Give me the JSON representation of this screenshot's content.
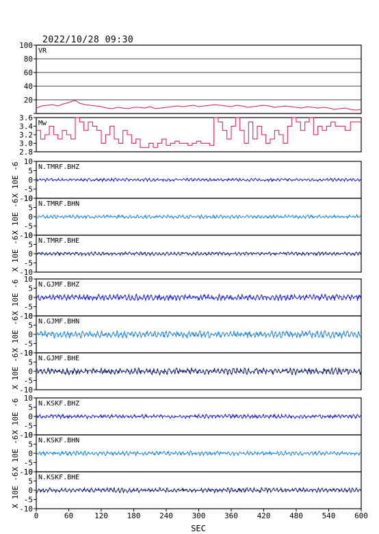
{
  "header": {
    "title": "2022/10/28 09:30"
  },
  "chart_data": {
    "type": "line",
    "xlabel": "SEC",
    "xlim": [
      0,
      600
    ],
    "xticks": [
      0,
      60,
      120,
      180,
      240,
      300,
      360,
      420,
      480,
      540,
      600
    ],
    "panels": [
      {
        "label": "VR",
        "ylim": [
          0,
          100
        ],
        "yticks": [
          0,
          20,
          40,
          60,
          80,
          100
        ],
        "ytick_labels": [
          "",
          "20",
          "40",
          "60",
          "80",
          "100"
        ],
        "grid": true,
        "color": "#d4154a",
        "series": {
          "x": [
            0,
            10,
            20,
            30,
            40,
            50,
            60,
            66,
            72,
            80,
            90,
            100,
            110,
            120,
            130,
            140,
            150,
            160,
            170,
            180,
            190,
            200,
            210,
            220,
            230,
            240,
            250,
            260,
            270,
            280,
            290,
            300,
            310,
            320,
            330,
            340,
            350,
            360,
            370,
            380,
            390,
            400,
            410,
            420,
            430,
            440,
            450,
            460,
            470,
            480,
            490,
            500,
            510,
            520,
            530,
            540,
            550,
            560,
            570,
            580,
            590,
            600
          ],
          "y": [
            8,
            11,
            12,
            13,
            11,
            14,
            16,
            18,
            19,
            15,
            13,
            12,
            11,
            10,
            8,
            7,
            9,
            8,
            7,
            9,
            9,
            8,
            10,
            7,
            8,
            9,
            10,
            11,
            10,
            11,
            12,
            10,
            11,
            12,
            13,
            12,
            11,
            10,
            12,
            11,
            9,
            10,
            11,
            12,
            11,
            9,
            10,
            11,
            10,
            9,
            8,
            10,
            9,
            8,
            9,
            8,
            6,
            7,
            8,
            6,
            5,
            6
          ]
        }
      },
      {
        "label": "Mw",
        "ylim": [
          2.8,
          3.6
        ],
        "yticks": [
          2.8,
          3.0,
          3.2,
          3.4,
          3.6
        ],
        "ytick_labels": [
          "2.8",
          "3.0",
          "3.2",
          "3.4",
          "3.6"
        ],
        "grid": false,
        "color": "#d4154a",
        "series": {
          "x": [
            0,
            8,
            16,
            24,
            32,
            40,
            48,
            56,
            64,
            72,
            80,
            88,
            96,
            104,
            112,
            120,
            128,
            136,
            144,
            152,
            160,
            168,
            176,
            184,
            192,
            200,
            208,
            216,
            224,
            232,
            240,
            248,
            256,
            264,
            272,
            280,
            288,
            296,
            304,
            312,
            320,
            328,
            336,
            344,
            352,
            360,
            368,
            376,
            384,
            392,
            400,
            408,
            416,
            424,
            432,
            440,
            448,
            456,
            464,
            472,
            480,
            488,
            496,
            504,
            512,
            520,
            528,
            536,
            544,
            552,
            560,
            570,
            580,
            590,
            600
          ],
          "y": [
            3.3,
            3.1,
            3.2,
            3.4,
            3.2,
            3.1,
            3.3,
            3.2,
            3.1,
            3.6,
            3.5,
            3.3,
            3.5,
            3.4,
            3.3,
            3.0,
            3.2,
            3.4,
            3.1,
            3.0,
            3.3,
            3.2,
            3.0,
            3.1,
            2.9,
            2.9,
            3.0,
            2.9,
            3.0,
            3.1,
            2.95,
            3.0,
            3.05,
            3.0,
            3.0,
            2.95,
            3.0,
            3.05,
            3.0,
            3.0,
            2.95,
            3.6,
            3.5,
            3.3,
            3.1,
            3.4,
            3.6,
            3.3,
            3.0,
            3.5,
            3.1,
            3.4,
            3.2,
            3.0,
            3.1,
            3.3,
            3.2,
            3.0,
            3.4,
            3.6,
            3.5,
            3.3,
            3.5,
            3.6,
            3.2,
            3.4,
            3.3,
            3.4,
            3.5,
            3.4,
            3.4,
            3.3,
            3.5,
            3.5,
            3.5
          ]
        }
      },
      {
        "label": "N.TMRF.BHZ",
        "ylim": [
          -10,
          10
        ],
        "yticks": [
          -10,
          -5,
          0,
          5,
          10
        ],
        "ytick_labels": [
          "-10",
          "-5",
          "0",
          "5",
          "10"
        ],
        "ylabel": "X 10E -6",
        "color": "#1c1fc4",
        "amplitude": 0.7
      },
      {
        "label": "N.TMRF.BHN",
        "ylim": [
          -10,
          10
        ],
        "yticks": [
          -10,
          -5,
          0,
          5,
          10
        ],
        "ytick_labels": [
          "-10",
          "-5",
          "0",
          "5",
          "10"
        ],
        "ylabel": "X 10E -6",
        "color": "#1e86d8",
        "amplitude": 0.8
      },
      {
        "label": "N.TMRF.BHE",
        "ylim": [
          -10,
          10
        ],
        "yticks": [
          -10,
          -5,
          0,
          5,
          10
        ],
        "ytick_labels": [
          "-10",
          "-5",
          "0",
          "5",
          "10"
        ],
        "ylabel": "X 10E -6",
        "color": "#0f1a66",
        "amplitude": 0.8
      },
      {
        "label": "N.GJMF.BHZ",
        "ylim": [
          -10,
          10
        ],
        "yticks": [
          -10,
          -5,
          0,
          5,
          10
        ],
        "ytick_labels": [
          "-10",
          "-5",
          "0",
          "5",
          "10"
        ],
        "ylabel": "X 10E -6",
        "color": "#1a1ae0",
        "amplitude": 1.4
      },
      {
        "label": "N.GJMF.BHN",
        "ylim": [
          -10,
          10
        ],
        "yticks": [
          -10,
          -5,
          0,
          5,
          10
        ],
        "ytick_labels": [
          "-10",
          "-5",
          "0",
          "5",
          "10"
        ],
        "ylabel": "X 10E -6",
        "color": "#1e86d8",
        "amplitude": 1.6
      },
      {
        "label": "N.GJMF.BHE",
        "ylim": [
          -10,
          10
        ],
        "yticks": [
          -10,
          -5,
          0,
          5,
          10
        ],
        "ytick_labels": [
          "-10",
          "-5",
          "0",
          "5",
          "10"
        ],
        "ylabel": "X 10E -6",
        "color": "#0f1a66",
        "amplitude": 1.5
      },
      {
        "label": "N.KSKF.BHZ",
        "ylim": [
          -10,
          10
        ],
        "yticks": [
          -10,
          -5,
          0,
          5,
          10
        ],
        "ytick_labels": [
          "-10",
          "-5",
          "0",
          "5",
          "10"
        ],
        "ylabel": "X 10E -6",
        "color": "#1c1fc4",
        "amplitude": 0.9
      },
      {
        "label": "N.KSKF.BHN",
        "ylim": [
          -10,
          10
        ],
        "yticks": [
          -10,
          -5,
          0,
          5,
          10
        ],
        "ytick_labels": [
          "-10",
          "-5",
          "0",
          "5",
          "10"
        ],
        "ylabel": "X 10E -6",
        "color": "#1e86d8",
        "amplitude": 1.0
      },
      {
        "label": "N.KSKF.BHE",
        "ylim": [
          -10,
          10
        ],
        "yticks": [
          -10,
          -5,
          0,
          5,
          10
        ],
        "ytick_labels": [
          "-10",
          "-5",
          "0",
          "5",
          "10"
        ],
        "ylabel": "X 10E -6",
        "color": "#0f1a66",
        "amplitude": 1.1
      }
    ]
  }
}
